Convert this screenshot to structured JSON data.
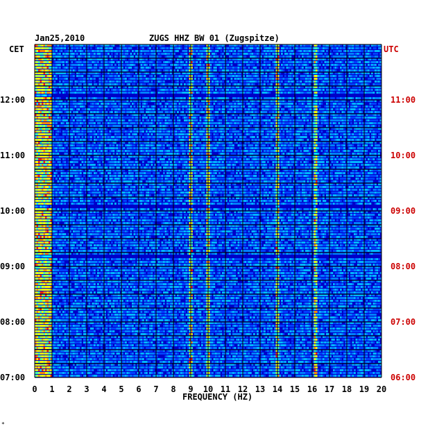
{
  "chart_data": {
    "type": "heatmap",
    "title": "ZUGS HHZ BW 01 (Zugspitze)",
    "date": "Jan25,2010",
    "xlabel": "FREQUENCY (HZ)",
    "left_timezone": "CET",
    "right_timezone": "UTC",
    "xlim": [
      0,
      20
    ],
    "x_ticks": [
      "0",
      "1",
      "2",
      "3",
      "4",
      "5",
      "6",
      "7",
      "8",
      "9",
      "10",
      "11",
      "12",
      "13",
      "14",
      "15",
      "16",
      "17",
      "18",
      "19",
      "20"
    ],
    "cet_ticks": [
      "12:00",
      "11:00",
      "10:00",
      "09:00",
      "08:00",
      "07:00"
    ],
    "utc_ticks": [
      "11:00",
      "10:00",
      "09:00",
      "08:00",
      "07:00",
      "06:00"
    ],
    "time_range_cet": [
      "07:00",
      "13:00"
    ],
    "colors": {
      "background": "#0000c8",
      "axis_text": "#000000",
      "utc_text": "#cc0000"
    },
    "notable_lines_hz": [
      9,
      10,
      14,
      16.2
    ]
  },
  "footer_mark": "*"
}
